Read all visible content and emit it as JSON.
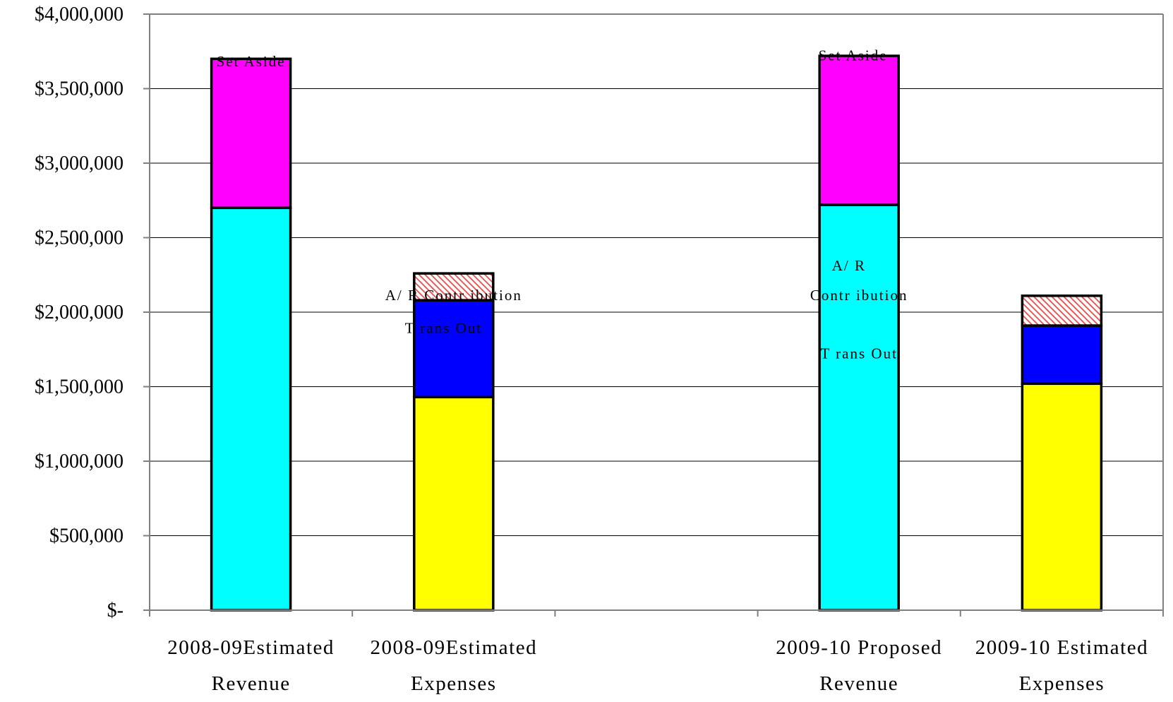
{
  "chart_data": {
    "type": "bar",
    "stacked": true,
    "title": "",
    "xlabel": "",
    "ylabel": "",
    "ylim": [
      0,
      4000000
    ],
    "yticks": [
      0,
      500000,
      1000000,
      1500000,
      2000000,
      2500000,
      3000000,
      3500000,
      4000000
    ],
    "ytick_labels": [
      "$-",
      "$500,000",
      "$1,000,000",
      "$1,500,000",
      "$2,000,000",
      "$2,500,000",
      "$3,000,000",
      "$3,500,000",
      "$4,000,000"
    ],
    "grid": true,
    "legend": "none",
    "slots": 5,
    "categories": [
      {
        "line1": "2008-09Estimated",
        "line2": "Revenue",
        "slot": 0
      },
      {
        "line1": "2008-09Estimated",
        "line2": "Expenses",
        "slot": 1
      },
      {
        "line1": "2009-10 Proposed",
        "line2": "Revenue",
        "slot": 3
      },
      {
        "line1": "2009-10 Estimated",
        "line2": "Expenses",
        "slot": 4
      }
    ],
    "segments": [
      [
        {
          "value": 2700000,
          "color": "#00ffff"
        },
        {
          "value": 1000000,
          "color": "#ff00ff"
        }
      ],
      [
        {
          "value": 1430000,
          "color": "#ffff00"
        },
        {
          "value": 650000,
          "color": "#0000ff"
        },
        {
          "value": 180000,
          "color": "#e84a4a",
          "pattern": "hatch"
        }
      ],
      [
        {
          "value": 2720000,
          "color": "#00ffff"
        },
        {
          "value": 1000000,
          "color": "#ff00ff"
        }
      ],
      [
        {
          "value": 1520000,
          "color": "#ffff00"
        },
        {
          "value": 390000,
          "color": "#0000ff"
        },
        {
          "value": 200000,
          "color": "#e84a4a",
          "pattern": "hatch"
        }
      ]
    ],
    "annotations": [
      {
        "text": "Set Aside",
        "slot": 0.5,
        "value": 3650000
      },
      {
        "text": "A/ R Contr ibution",
        "slot": 1.5,
        "value": 2080000
      },
      {
        "text": "T rans Out",
        "slot": 1.45,
        "value": 1860000
      },
      {
        "text": "Set Aside",
        "slot": 3.47,
        "value": 3690000
      },
      {
        "text": "A/ R",
        "slot": 3.45,
        "value": 2280000
      },
      {
        "text": "Contr ibution",
        "slot": 3.5,
        "value": 2080000
      },
      {
        "text": "T rans Out",
        "slot": 3.5,
        "value": 1690000
      }
    ]
  }
}
